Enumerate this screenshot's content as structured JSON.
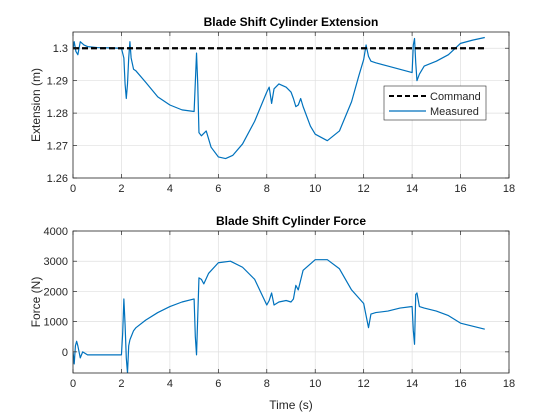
{
  "colors": {
    "command": "#000000",
    "measured": "#0072BD",
    "grid": "#dfdfdf",
    "axis": "#262626"
  },
  "chart_data": [
    {
      "type": "line",
      "title": "Blade Shift Cylinder Extension",
      "xlabel": "",
      "ylabel": "Extension (m)",
      "xlim": [
        0,
        18
      ],
      "ylim": [
        1.26,
        1.305
      ],
      "xticks": [
        "0",
        "2",
        "4",
        "6",
        "8",
        "10",
        "12",
        "14",
        "16",
        "18"
      ],
      "yticks": [
        "1.26",
        "1.27",
        "1.28",
        "1.29",
        "1.3"
      ],
      "grid": true,
      "legend": {
        "location": "right",
        "entries": [
          "Command",
          "Measured"
        ]
      },
      "series": [
        {
          "name": "Command",
          "style": "dashed",
          "x": [
            0,
            17
          ],
          "y": [
            1.3,
            1.3
          ]
        },
        {
          "name": "Measured",
          "style": "solid",
          "x": [
            0,
            0.05,
            0.12,
            0.2,
            0.3,
            0.45,
            0.6,
            1.0,
            1.5,
            2.0,
            2.1,
            2.15,
            2.2,
            2.25,
            2.3,
            2.35,
            2.4,
            2.5,
            2.6,
            3.0,
            3.5,
            4.0,
            4.5,
            5.0,
            5.05,
            5.1,
            5.15,
            5.2,
            5.3,
            5.5,
            5.7,
            6.0,
            6.3,
            6.6,
            7.0,
            7.5,
            8.0,
            8.1,
            8.2,
            8.3,
            8.5,
            8.8,
            9.0,
            9.1,
            9.2,
            9.3,
            9.4,
            9.5,
            9.8,
            10.0,
            10.5,
            11.0,
            11.5,
            11.8,
            12.0,
            12.1,
            12.2,
            12.3,
            12.5,
            13.0,
            13.5,
            14.0,
            14.05,
            14.1,
            14.15,
            14.2,
            14.3,
            14.5,
            15.0,
            15.5,
            16.0,
            16.5,
            17.0
          ],
          "y": [
            1.3,
            1.302,
            1.299,
            1.298,
            1.302,
            1.301,
            1.3005,
            1.3002,
            1.3001,
            1.3,
            1.297,
            1.289,
            1.2845,
            1.289,
            1.297,
            1.302,
            1.297,
            1.2935,
            1.293,
            1.2895,
            1.285,
            1.2825,
            1.281,
            1.2805,
            1.2895,
            1.2985,
            1.289,
            1.274,
            1.273,
            1.2745,
            1.2695,
            1.2665,
            1.266,
            1.267,
            1.2705,
            1.2775,
            1.2865,
            1.288,
            1.283,
            1.2875,
            1.289,
            1.288,
            1.2865,
            1.2845,
            1.282,
            1.2825,
            1.2845,
            1.282,
            1.276,
            1.2735,
            1.2715,
            1.2745,
            1.2835,
            1.2915,
            1.2965,
            1.301,
            1.2975,
            1.296,
            1.2955,
            1.2945,
            1.2935,
            1.2925,
            1.301,
            1.303,
            1.2955,
            1.29,
            1.292,
            1.2945,
            1.296,
            1.298,
            1.3015,
            1.3025,
            1.3033
          ]
        }
      ]
    },
    {
      "type": "line",
      "title": "Blade Shift Cylinder Force",
      "xlabel": "Time (s)",
      "ylabel": "Force (N)",
      "xlim": [
        0,
        18
      ],
      "ylim": [
        -700,
        4000
      ],
      "xticks": [
        "0",
        "2",
        "4",
        "6",
        "8",
        "10",
        "12",
        "14",
        "16",
        "18"
      ],
      "yticks": [
        "0",
        "1000",
        "2000",
        "3000",
        "4000"
      ],
      "grid": true,
      "series": [
        {
          "name": "",
          "style": "solid",
          "x": [
            0,
            0.05,
            0.1,
            0.15,
            0.2,
            0.3,
            0.4,
            0.5,
            0.6,
            0.8,
            1.0,
            1.5,
            2.0,
            2.05,
            2.1,
            2.15,
            2.2,
            2.25,
            2.3,
            2.35,
            2.4,
            2.5,
            2.6,
            3.0,
            3.5,
            4.0,
            4.5,
            5.0,
            5.05,
            5.1,
            5.2,
            5.3,
            5.4,
            5.6,
            6.0,
            6.5,
            7.0,
            7.5,
            8.0,
            8.1,
            8.2,
            8.3,
            8.5,
            8.8,
            9.0,
            9.1,
            9.2,
            9.3,
            9.5,
            10.0,
            10.5,
            11.0,
            11.5,
            12.0,
            12.1,
            12.2,
            12.3,
            12.5,
            13.0,
            13.5,
            14.0,
            14.05,
            14.1,
            14.15,
            14.2,
            14.3,
            14.5,
            15.0,
            15.5,
            16.0,
            16.5,
            17.0
          ],
          "y": [
            0,
            -400,
            200,
            350,
            200,
            -200,
            0,
            -50,
            -100,
            -100,
            -100,
            -100,
            -100,
            600,
            1750,
            900,
            -200,
            -700,
            200,
            400,
            500,
            700,
            800,
            1050,
            1300,
            1500,
            1650,
            1750,
            500,
            -100,
            2450,
            2400,
            2250,
            2600,
            2950,
            3000,
            2800,
            2400,
            1550,
            1700,
            1950,
            1550,
            1650,
            1700,
            1650,
            1750,
            2200,
            2050,
            2700,
            3050,
            3050,
            2750,
            2050,
            1600,
            1200,
            800,
            1250,
            1300,
            1350,
            1450,
            1500,
            700,
            250,
            1900,
            1950,
            1500,
            1450,
            1350,
            1200,
            950,
            850,
            750
          ]
        }
      ]
    }
  ]
}
